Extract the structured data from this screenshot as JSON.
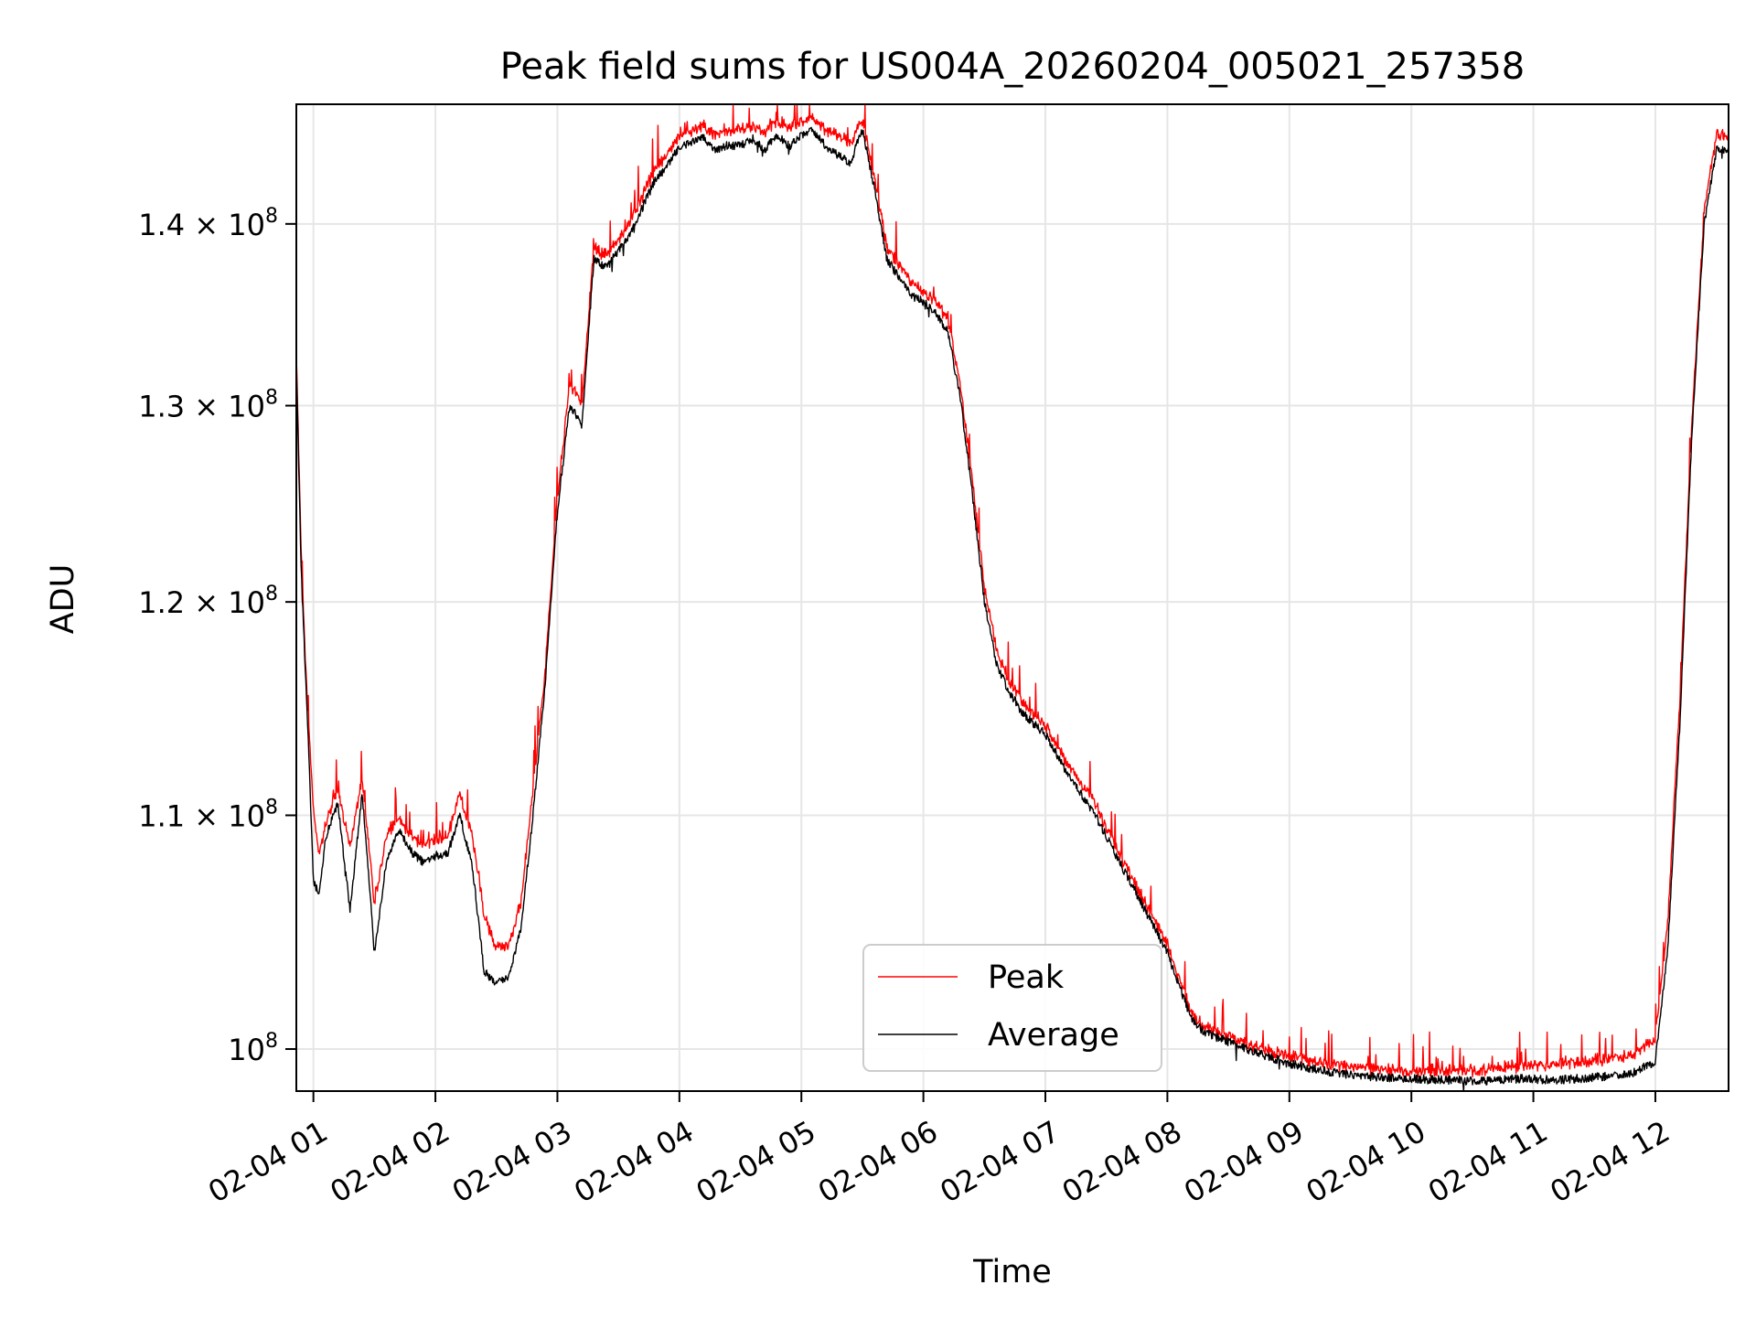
{
  "chart_data": {
    "type": "line",
    "title": "Peak field sums for US004A_20260204_005021_257358",
    "xlabel": "Time",
    "ylabel": "ADU",
    "yscale": "log",
    "ylim": [
      98300000,
      147000000
    ],
    "xlim": [
      0.86,
      12.6
    ],
    "grid": true,
    "legend_position": "lower-center",
    "x_ticks": [
      {
        "value": 1,
        "label": "02-04 01"
      },
      {
        "value": 2,
        "label": "02-04 02"
      },
      {
        "value": 3,
        "label": "02-04 03"
      },
      {
        "value": 4,
        "label": "02-04 04"
      },
      {
        "value": 5,
        "label": "02-04 05"
      },
      {
        "value": 6,
        "label": "02-04 06"
      },
      {
        "value": 7,
        "label": "02-04 07"
      },
      {
        "value": 8,
        "label": "02-04 08"
      },
      {
        "value": 9,
        "label": "02-04 09"
      },
      {
        "value": 10,
        "label": "02-04 10"
      },
      {
        "value": 11,
        "label": "02-04 11"
      },
      {
        "value": 12,
        "label": "02-04 12"
      }
    ],
    "y_ticks": [
      {
        "value": 100000000,
        "mantissa": "10",
        "exp": "8"
      },
      {
        "value": 110000000,
        "mantissa": "1.1 × 10",
        "exp": "8"
      },
      {
        "value": 120000000,
        "mantissa": "1.2 × 10",
        "exp": "8"
      },
      {
        "value": 130000000,
        "mantissa": "1.3 × 10",
        "exp": "8"
      },
      {
        "value": 140000000,
        "mantissa": "1.4 × 10",
        "exp": "8"
      }
    ],
    "series": [
      {
        "name": "Peak",
        "color": "#ff0000",
        "x": [
          0.86,
          0.9,
          0.95,
          1.0,
          1.05,
          1.1,
          1.2,
          1.3,
          1.4,
          1.5,
          1.6,
          1.7,
          1.8,
          1.9,
          2.0,
          2.1,
          2.2,
          2.3,
          2.4,
          2.5,
          2.6,
          2.7,
          2.8,
          2.9,
          3.0,
          3.1,
          3.2,
          3.3,
          3.4,
          3.5,
          3.6,
          3.7,
          3.8,
          3.9,
          4.0,
          4.1,
          4.2,
          4.3,
          4.4,
          4.5,
          4.6,
          4.7,
          4.8,
          4.9,
          5.0,
          5.1,
          5.2,
          5.3,
          5.4,
          5.5,
          5.6,
          5.7,
          5.8,
          5.9,
          6.0,
          6.1,
          6.2,
          6.3,
          6.4,
          6.5,
          6.6,
          6.7,
          6.8,
          6.9,
          7.0,
          7.2,
          7.4,
          7.6,
          7.8,
          8.0,
          8.2,
          8.3,
          8.5,
          8.7,
          9.0,
          9.3,
          9.6,
          10.0,
          10.3,
          10.6,
          10.9,
          11.2,
          11.5,
          11.8,
          12.0,
          12.1,
          12.2,
          12.3,
          12.4,
          12.5,
          12.6
        ],
        "values": [
          132500000,
          122000000,
          115000000,
          110000000,
          108000000,
          109500000,
          111000000,
          108500000,
          111500000,
          106000000,
          109000000,
          109700000,
          109000000,
          108500000,
          108800000,
          108900000,
          110800000,
          109000000,
          105500000,
          104000000,
          104200000,
          106000000,
          111000000,
          116500000,
          125000000,
          131000000,
          130000000,
          138500000,
          138000000,
          139000000,
          140000000,
          141500000,
          143000000,
          143800000,
          145000000,
          145200000,
          145500000,
          145000000,
          145300000,
          145200000,
          145600000,
          145200000,
          145800000,
          145500000,
          145800000,
          146000000,
          145300000,
          145000000,
          144500000,
          145800000,
          142500000,
          138500000,
          137500000,
          136500000,
          136000000,
          135500000,
          134500000,
          131000000,
          126000000,
          120500000,
          117500000,
          116000000,
          115200000,
          114500000,
          114000000,
          112000000,
          110500000,
          108200000,
          106200000,
          104200000,
          101300000,
          100800000,
          100400000,
          100000000,
          99600000,
          99300000,
          99100000,
          99000000,
          99000000,
          99000000,
          99200000,
          99300000,
          99400000,
          99600000,
          100300000,
          105000000,
          115000000,
          129000000,
          140500000,
          145000000,
          145000000
        ]
      },
      {
        "name": "Average",
        "color": "#000000",
        "x": [
          0.86,
          0.9,
          0.95,
          1.0,
          1.05,
          1.1,
          1.2,
          1.3,
          1.4,
          1.5,
          1.6,
          1.7,
          1.8,
          1.9,
          2.0,
          2.1,
          2.2,
          2.3,
          2.4,
          2.5,
          2.6,
          2.7,
          2.8,
          2.9,
          3.0,
          3.1,
          3.2,
          3.3,
          3.4,
          3.5,
          3.6,
          3.7,
          3.8,
          3.9,
          4.0,
          4.1,
          4.2,
          4.3,
          4.4,
          4.5,
          4.6,
          4.7,
          4.8,
          4.9,
          5.0,
          5.1,
          5.2,
          5.3,
          5.4,
          5.5,
          5.6,
          5.7,
          5.8,
          5.9,
          6.0,
          6.1,
          6.2,
          6.3,
          6.4,
          6.5,
          6.6,
          6.7,
          6.8,
          6.9,
          7.0,
          7.2,
          7.4,
          7.6,
          7.8,
          8.0,
          8.2,
          8.3,
          8.5,
          8.7,
          9.0,
          9.3,
          9.6,
          10.0,
          10.3,
          10.6,
          10.9,
          11.2,
          11.5,
          11.8,
          12.0,
          12.1,
          12.2,
          12.3,
          12.4,
          12.5,
          12.6
        ],
        "values": [
          132000000,
          121500000,
          114500000,
          107000000,
          106500000,
          109000000,
          110500000,
          105800000,
          111000000,
          104000000,
          108000000,
          109300000,
          108400000,
          107900000,
          108200000,
          108300000,
          110000000,
          107800000,
          103200000,
          102700000,
          103000000,
          105000000,
          110000000,
          116000000,
          124500000,
          130000000,
          129000000,
          138000000,
          137500000,
          138500000,
          139500000,
          141000000,
          142500000,
          143300000,
          144500000,
          144700000,
          145000000,
          144300000,
          144600000,
          144500000,
          145000000,
          144300000,
          145200000,
          144500000,
          145200000,
          145400000,
          144500000,
          144000000,
          143500000,
          145500000,
          142000000,
          138000000,
          137000000,
          136000000,
          135600000,
          135000000,
          134000000,
          130500000,
          125500000,
          120000000,
          117000000,
          115700000,
          114800000,
          114200000,
          113700000,
          111700000,
          110100000,
          108000000,
          106000000,
          104000000,
          101200000,
          100700000,
          100300000,
          99900000,
          99400000,
          99100000,
          98900000,
          98800000,
          98750000,
          98700000,
          98800000,
          98750000,
          98850000,
          99000000,
          99500000,
          104000000,
          114000000,
          128500000,
          140000000,
          144300000,
          144300000
        ]
      }
    ],
    "legend": [
      {
        "label": "Peak",
        "color": "#ff0000"
      },
      {
        "label": "Average",
        "color": "#000000"
      }
    ]
  }
}
